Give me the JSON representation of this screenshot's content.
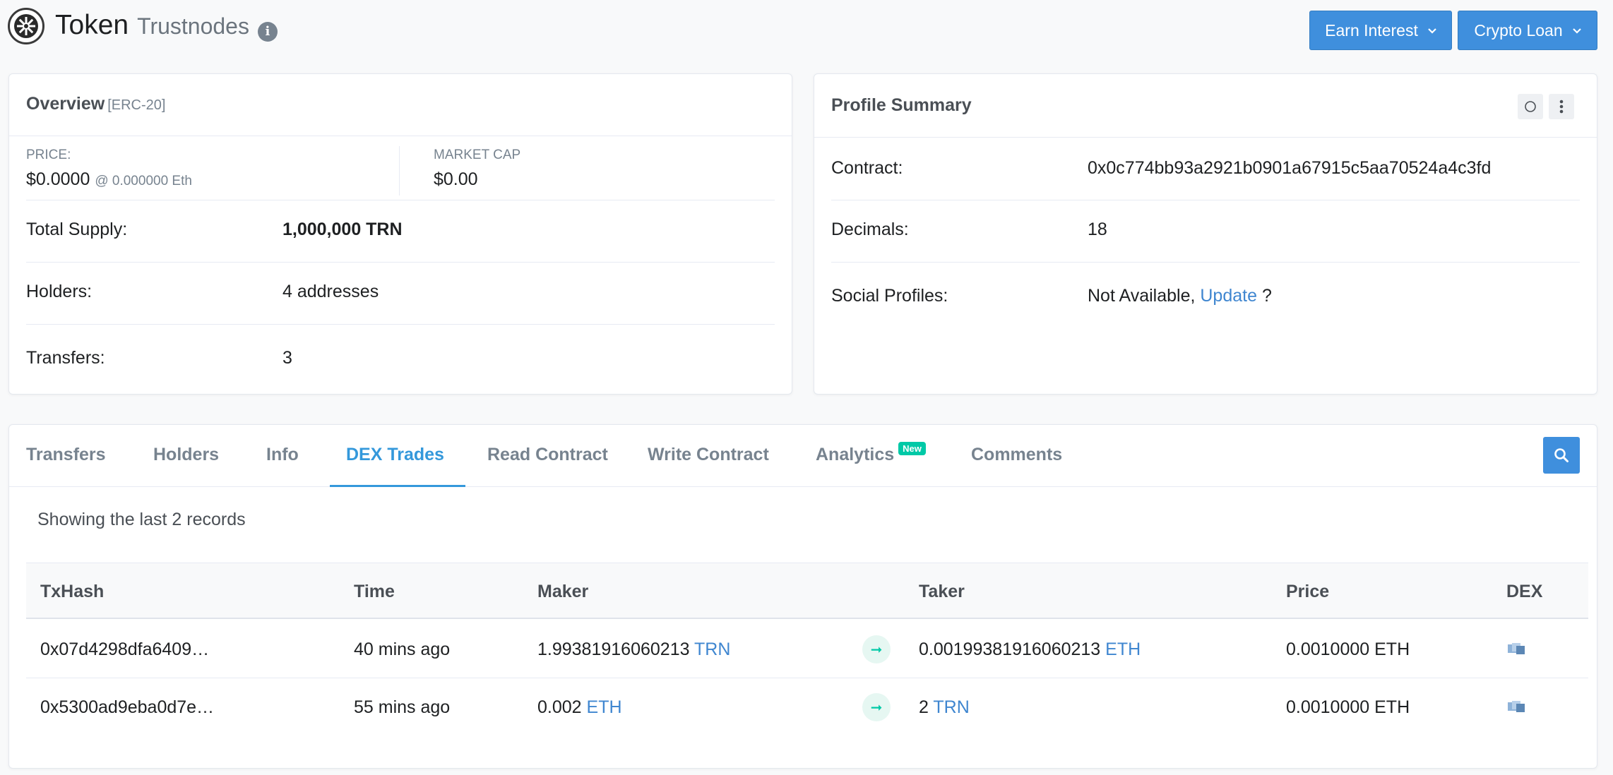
{
  "header": {
    "title": "Token",
    "token_name": "Trustnodes",
    "info_glyph": "i",
    "buttons": [
      {
        "label": "Earn Interest"
      },
      {
        "label": "Crypto Loan"
      }
    ]
  },
  "overview": {
    "title": "Overview",
    "subtitle": "[ERC-20]",
    "price_label": "PRICE:",
    "price_value": "$0.0000",
    "price_eth": "@ 0.000000 Eth",
    "market_cap_label": "MARKET CAP",
    "market_cap_value": "$0.00",
    "total_supply_label": "Total Supply:",
    "total_supply_value": "1,000,000 TRN",
    "holders_label": "Holders:",
    "holders_value": "4 addresses",
    "transfers_label": "Transfers:",
    "transfers_value": "3"
  },
  "profile": {
    "title": "Profile Summary",
    "contract_label": "Contract:",
    "contract_value": "0x0c774bb93a2921b0901a67915c5aa70524a4c3fd",
    "decimals_label": "Decimals:",
    "decimals_value": "18",
    "social_label": "Social Profiles:",
    "social_value": "Not Available,",
    "social_update": "Update",
    "social_suffix": "?"
  },
  "tabs": {
    "items": [
      {
        "label": "Transfers"
      },
      {
        "label": "Holders"
      },
      {
        "label": "Info"
      },
      {
        "label": "DEX Trades"
      },
      {
        "label": "Read Contract"
      },
      {
        "label": "Write Contract"
      },
      {
        "label": "Analytics"
      },
      {
        "label": "Comments"
      }
    ],
    "active": "DEX Trades",
    "new_badge": "New"
  },
  "trades": {
    "summary": "Showing the last 2 records",
    "columns": [
      "TxHash",
      "Time",
      "Maker",
      "Taker",
      "Price",
      "DEX"
    ],
    "rows": [
      {
        "txhash": "0x07d4298dfa6409…",
        "time": "40 mins ago",
        "maker_amount": "1.99381916060213",
        "maker_token": "TRN",
        "taker_amount": "0.00199381916060213",
        "taker_token": "ETH",
        "price": "0.0010000 ETH",
        "dex_icon": "dex-logo-icon"
      },
      {
        "txhash": "0x5300ad9eba0d7e…",
        "time": "55 mins ago",
        "maker_amount": "0.002",
        "maker_token": "ETH",
        "taker_amount": "2",
        "taker_token": "TRN",
        "price": "0.0010000 ETH",
        "dex_icon": "dex-logo-icon"
      }
    ]
  },
  "colors": {
    "accent": "#3498db",
    "button": "#3f8fdd",
    "badge": "#00c9a7"
  }
}
